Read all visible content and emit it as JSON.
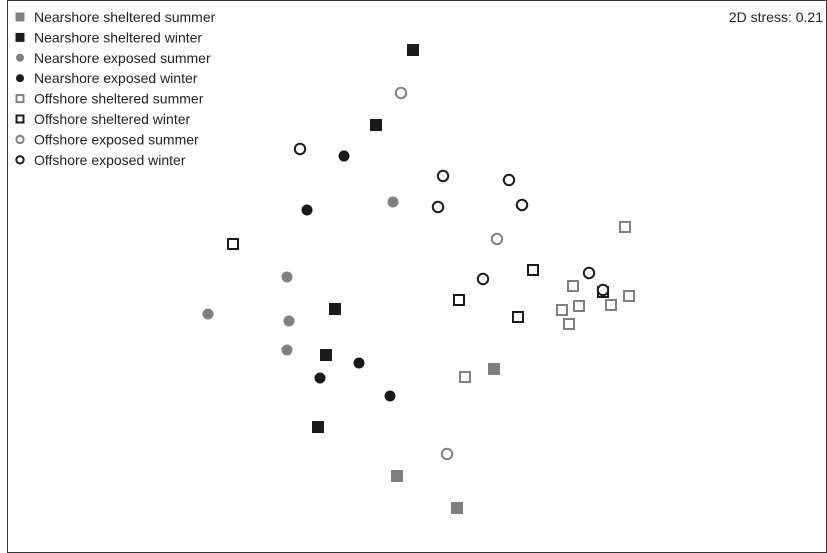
{
  "chart_data": {
    "type": "scatter",
    "title": "",
    "xlabel": "",
    "ylabel": "",
    "grid": false,
    "legend_position": "top-left",
    "annotation": "2D stress: 0.21",
    "series": [
      {
        "name": "Nearshore sheltered summer",
        "marker": "square",
        "filled": true,
        "color": "#808080",
        "points": [
          [
            494,
            369
          ],
          [
            397,
            476
          ],
          [
            457,
            508
          ]
        ]
      },
      {
        "name": "Nearshore sheltered winter",
        "marker": "square",
        "filled": true,
        "color": "#1a1a1a",
        "points": [
          [
            413,
            50
          ],
          [
            376,
            125
          ],
          [
            335,
            309
          ],
          [
            326,
            355
          ],
          [
            318,
            427
          ]
        ]
      },
      {
        "name": "Nearshore exposed summer",
        "marker": "circle",
        "filled": true,
        "color": "#808080",
        "points": [
          [
            393,
            202
          ],
          [
            287,
            277
          ],
          [
            208,
            314
          ],
          [
            289,
            321
          ],
          [
            287,
            350
          ]
        ]
      },
      {
        "name": "Nearshore exposed winter",
        "marker": "circle",
        "filled": true,
        "color": "#1a1a1a",
        "points": [
          [
            344,
            156
          ],
          [
            307,
            210
          ],
          [
            359,
            363
          ],
          [
            320,
            378
          ],
          [
            390,
            396
          ]
        ]
      },
      {
        "name": "Offshore sheltered summer",
        "marker": "square",
        "filled": false,
        "color": "#808080",
        "points": [
          [
            625,
            227
          ],
          [
            573,
            286
          ],
          [
            629,
            296
          ],
          [
            562,
            310
          ],
          [
            579,
            306
          ],
          [
            611,
            305
          ],
          [
            569,
            324
          ],
          [
            465,
            377
          ]
        ]
      },
      {
        "name": "Offshore sheltered winter",
        "marker": "square",
        "filled": false,
        "color": "#1a1a1a",
        "points": [
          [
            233,
            244
          ],
          [
            533,
            270
          ],
          [
            459,
            300
          ],
          [
            518,
            317
          ],
          [
            603,
            292
          ]
        ]
      },
      {
        "name": "Offshore exposed summer",
        "marker": "circle",
        "filled": false,
        "color": "#808080",
        "points": [
          [
            401,
            93
          ],
          [
            497,
            239
          ],
          [
            447,
            454
          ]
        ]
      },
      {
        "name": "Offshore exposed winter",
        "marker": "circle",
        "filled": false,
        "color": "#1a1a1a",
        "points": [
          [
            300,
            149
          ],
          [
            443,
            176
          ],
          [
            509,
            180
          ],
          [
            438,
            207
          ],
          [
            522,
            205
          ],
          [
            483,
            279
          ],
          [
            589,
            273
          ],
          [
            603,
            290
          ]
        ]
      }
    ]
  }
}
